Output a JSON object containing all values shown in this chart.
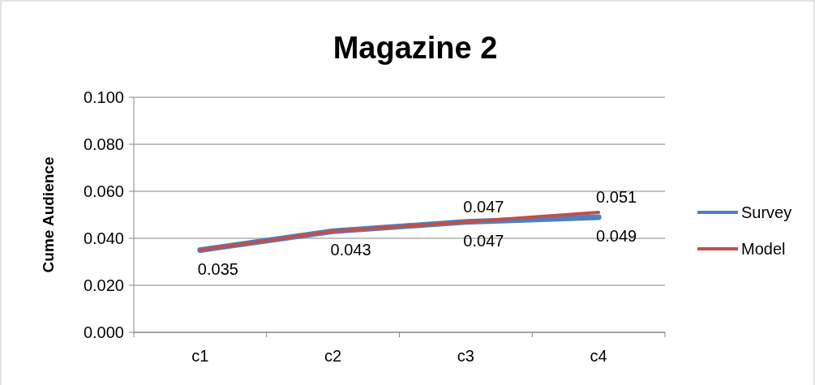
{
  "chart_data": {
    "type": "line",
    "title": "Magazine 2",
    "ylabel": "Cume Audience",
    "categories": [
      "c1",
      "c2",
      "c3",
      "c4"
    ],
    "series": [
      {
        "name": "Survey",
        "color": "#4f81bd",
        "values": [
          0.035,
          0.043,
          0.047,
          0.049
        ],
        "value_labels": [
          "0.035",
          "0.043",
          "0.047",
          "0.049"
        ]
      },
      {
        "name": "Model",
        "color": "#c0504d",
        "values": [
          0.035,
          0.043,
          0.047,
          0.051
        ],
        "value_labels": [
          null,
          null,
          "0.047",
          "0.051"
        ]
      }
    ],
    "ylim": [
      0,
      0.1
    ],
    "yticks": [
      {
        "value": 0,
        "label": "0.000"
      },
      {
        "value": 0.02,
        "label": "0.020"
      },
      {
        "value": 0.04,
        "label": "0.040"
      },
      {
        "value": 0.06,
        "label": "0.060"
      },
      {
        "value": 0.08,
        "label": "0.080"
      },
      {
        "value": 0.1,
        "label": "0.100"
      }
    ],
    "grid": "y",
    "legend": "right",
    "marker": "none",
    "line_style": "solid"
  }
}
